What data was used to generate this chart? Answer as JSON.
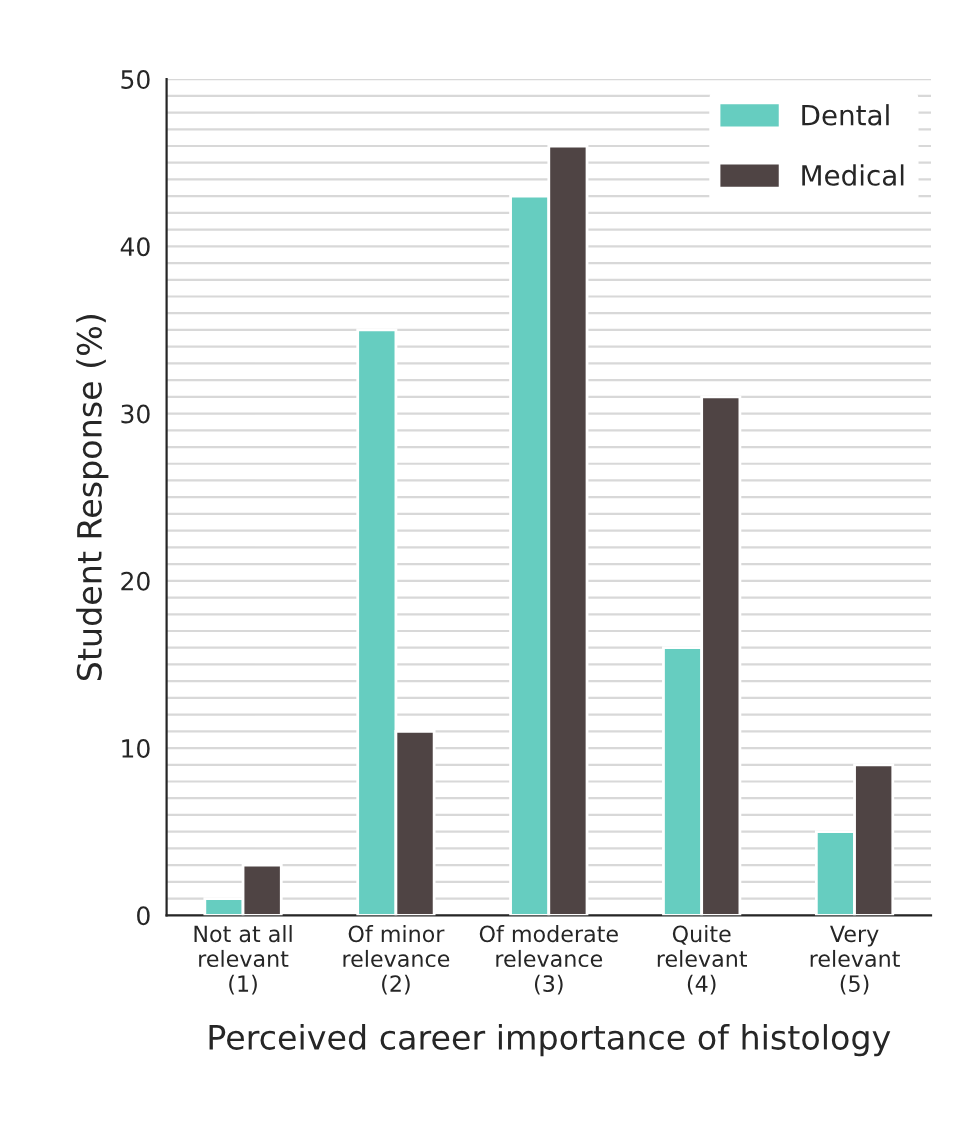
{
  "chart_data": {
    "type": "bar",
    "xlabel": "Perceived career importance of histology",
    "ylabel": "Student Response (%)",
    "categories": [
      "Not at all\nrelevant\n(1)",
      "Of minor\nrelevance\n(2)",
      "Of moderate\nrelevance\n(3)",
      "Quite\nrelevant\n(4)",
      "Very\nrelevant\n(5)"
    ],
    "series": [
      {
        "name": "Dental",
        "color": "#66cdc0",
        "values": [
          1,
          35,
          43,
          16,
          5
        ]
      },
      {
        "name": "Medical",
        "color": "#4f4444",
        "values": [
          3,
          11,
          46,
          31,
          9
        ]
      }
    ],
    "ylim": [
      0,
      50
    ],
    "yticks": [
      0,
      {
        "value": 1,
        "label": null
      },
      {
        "value": 2,
        "label": null
      },
      {
        "value": 3,
        "label": null
      },
      {
        "value": 4,
        "label": null
      },
      {
        "value": 5,
        "label": null
      },
      {
        "value": 6,
        "label": null
      },
      {
        "value": 7,
        "label": null
      },
      {
        "value": 8,
        "label": null
      },
      {
        "value": 9,
        "label": null
      },
      10,
      {
        "value": 11,
        "label": null
      },
      {
        "value": 12,
        "label": null
      },
      {
        "value": 13,
        "label": null
      },
      {
        "value": 14,
        "label": null
      },
      {
        "value": 15,
        "label": null
      },
      {
        "value": 16,
        "label": null
      },
      {
        "value": 17,
        "label": null
      },
      {
        "value": 18,
        "label": null
      },
      {
        "value": 19,
        "label": null
      },
      20,
      {
        "value": 21,
        "label": null
      },
      {
        "value": 22,
        "label": null
      },
      {
        "value": 23,
        "label": null
      },
      {
        "value": 24,
        "label": null
      },
      {
        "value": 25,
        "label": null
      },
      {
        "value": 26,
        "label": null
      },
      {
        "value": 27,
        "label": null
      },
      {
        "value": 28,
        "label": null
      },
      {
        "value": 29,
        "label": null
      },
      30,
      {
        "value": 31,
        "label": null
      },
      {
        "value": 32,
        "label": null
      },
      {
        "value": 33,
        "label": null
      },
      {
        "value": 34,
        "label": null
      },
      {
        "value": 35,
        "label": null
      },
      {
        "value": 36,
        "label": null
      },
      {
        "value": 37,
        "label": null
      },
      {
        "value": 38,
        "label": null
      },
      {
        "value": 39,
        "label": null
      },
      40,
      {
        "value": 41,
        "label": null
      },
      {
        "value": 42,
        "label": null
      },
      {
        "value": 43,
        "label": null
      },
      {
        "value": 44,
        "label": null
      },
      {
        "value": 45,
        "label": null
      },
      {
        "value": 46,
        "label": null
      },
      {
        "value": 47,
        "label": null
      },
      {
        "value": 48,
        "label": null
      },
      {
        "value": 49,
        "label": null
      },
      50
    ],
    "grid": "y",
    "legend": "top right"
  }
}
